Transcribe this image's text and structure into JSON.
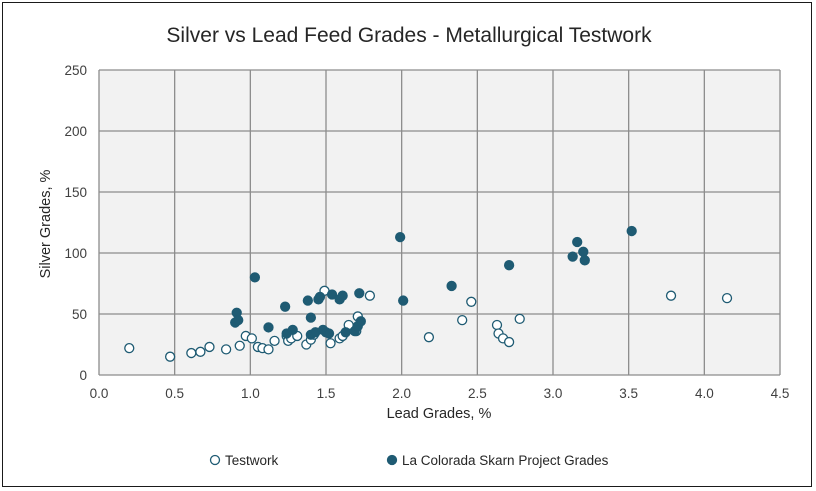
{
  "chart_data": {
    "type": "scatter",
    "title": "Silver vs Lead Feed Grades - Metallurgical Testwork",
    "xlabel": "Lead Grades, %",
    "ylabel": "Silver Grades, %",
    "xlim": [
      0,
      4.5
    ],
    "ylim": [
      0,
      250
    ],
    "x_ticks": [
      "0.0",
      "0.5",
      "1.0",
      "1.5",
      "2.0",
      "2.5",
      "3.0",
      "3.5",
      "4.0",
      "4.5"
    ],
    "y_ticks": [
      "0",
      "50",
      "100",
      "150",
      "200",
      "250"
    ],
    "grid": true,
    "legend_position": "bottom",
    "colors": {
      "plot_bg": "#f2f2f2",
      "grid": "#8c8c8c",
      "marker": "#1f5b73"
    },
    "series": [
      {
        "name": "Testwork",
        "marker": "hollow-circle",
        "x": [
          0.2,
          0.47,
          0.61,
          0.67,
          0.73,
          0.84,
          0.93,
          0.97,
          1.01,
          1.05,
          1.08,
          1.12,
          1.16,
          1.24,
          1.25,
          1.27,
          1.31,
          1.37,
          1.4,
          1.42,
          1.49,
          1.53,
          1.59,
          1.61,
          1.65,
          1.7,
          1.71,
          1.79,
          2.18,
          2.4,
          2.46,
          2.63,
          2.64,
          2.67,
          2.71,
          2.78,
          3.78,
          4.15
        ],
        "y": [
          22,
          15,
          18,
          19,
          23,
          21,
          24,
          32,
          30,
          23,
          22,
          21,
          28,
          32,
          28,
          30,
          32,
          25,
          29,
          33,
          69,
          26,
          30,
          32,
          41,
          36,
          48,
          65,
          31,
          45,
          60,
          41,
          34,
          30,
          27,
          46,
          65,
          63
        ]
      },
      {
        "name": "La Colorada Skarn Project Grades",
        "marker": "filled-circle",
        "x": [
          0.9,
          0.91,
          0.92,
          1.03,
          1.12,
          1.23,
          1.24,
          1.28,
          1.38,
          1.4,
          1.4,
          1.43,
          1.45,
          1.46,
          1.48,
          1.5,
          1.52,
          1.54,
          1.59,
          1.61,
          1.63,
          1.69,
          1.71,
          1.72,
          1.73,
          1.99,
          2.01,
          2.33,
          2.71,
          3.13,
          3.16,
          3.2,
          3.21,
          3.52
        ],
        "y": [
          43,
          51,
          45,
          80,
          39,
          56,
          34,
          37,
          61,
          47,
          33,
          35,
          62,
          64,
          37,
          35,
          34,
          66,
          62,
          65,
          35,
          36,
          40,
          67,
          44,
          113,
          61,
          73,
          90,
          97,
          109,
          101,
          94,
          118
        ]
      }
    ]
  }
}
